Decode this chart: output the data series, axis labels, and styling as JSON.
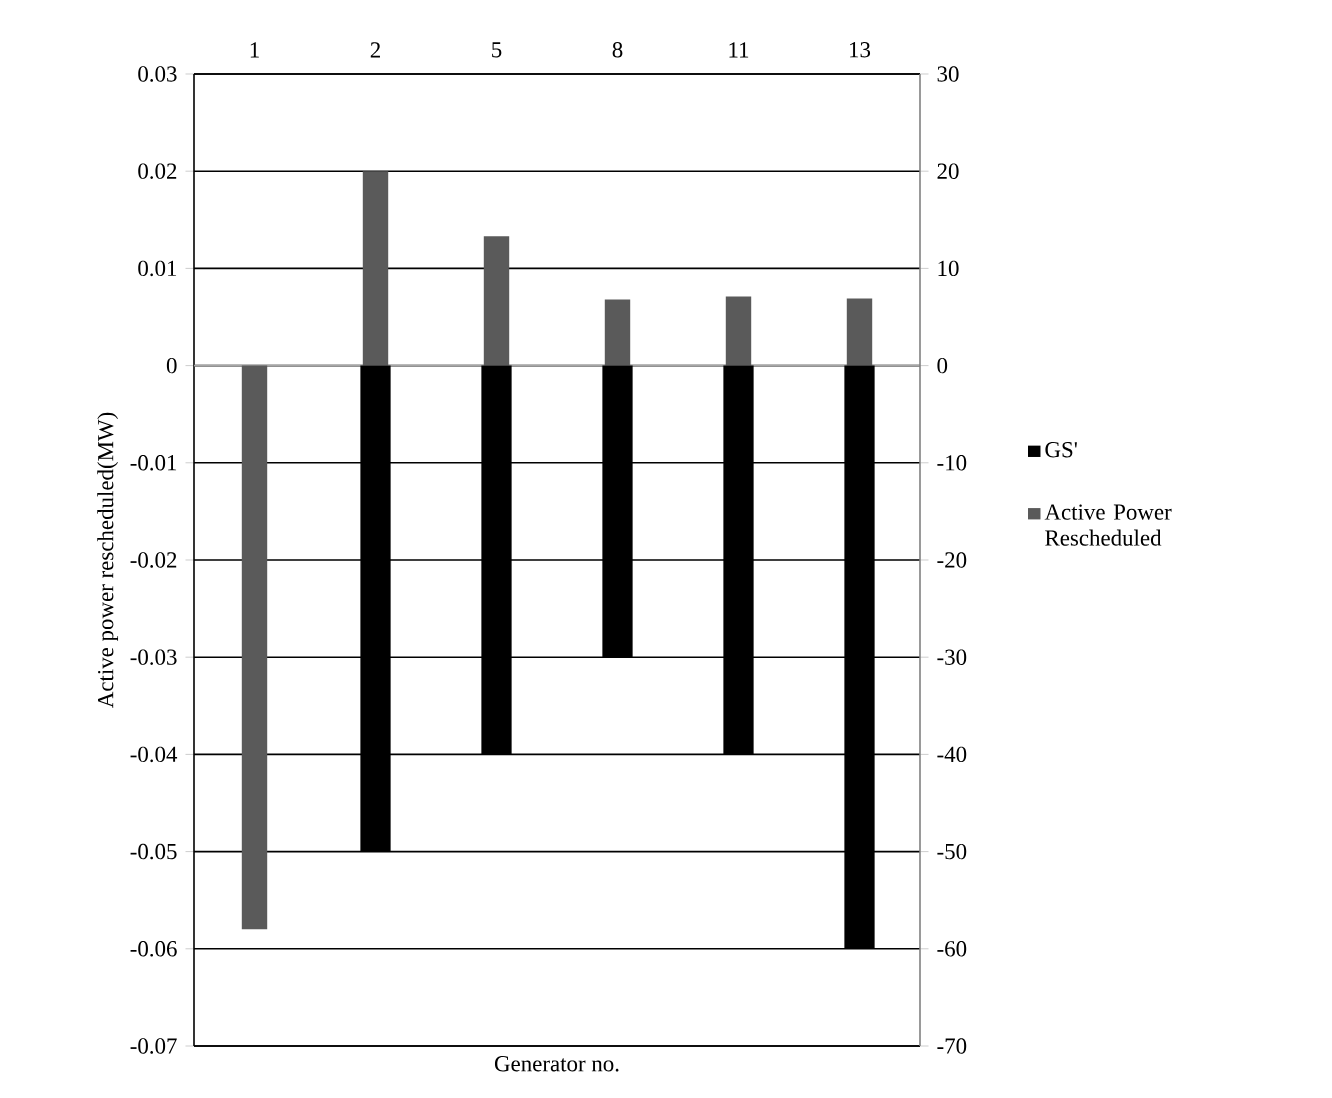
{
  "chart_data": {
    "type": "bar",
    "xlabel": "Generator no.",
    "ylabel": "Active power rescheduled(MW)",
    "categories": [
      "1",
      "2",
      "5",
      "8",
      "11",
      "13"
    ],
    "series": [
      {
        "name": "GS'",
        "color": "#000000",
        "axis": "y2",
        "values": [
          null,
          -50,
          -40,
          -30,
          -40,
          -60
        ]
      },
      {
        "name": "Active Power Rescheduled",
        "color": "#5a5a5a",
        "values": [
          -0.058,
          0.02,
          0.0133,
          0.0068,
          0.0071,
          0.0069
        ]
      }
    ],
    "ylim": [
      -0.07,
      0.03
    ],
    "yticks": [
      -0.07,
      -0.06,
      -0.05,
      -0.04,
      -0.03,
      -0.02,
      -0.01,
      0,
      0.01,
      0.02,
      0.03
    ],
    "y2lim": [
      -70,
      30
    ],
    "y2ticks": [
      -70,
      -60,
      -50,
      -40,
      -30,
      -20,
      -10,
      0,
      10,
      20,
      30
    ],
    "grid": "y",
    "legend": "right"
  }
}
